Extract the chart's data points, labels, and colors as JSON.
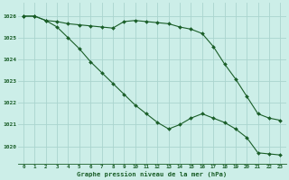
{
  "title": "Graphe pression niveau de la mer (hPa)",
  "bg_color": "#cceee8",
  "grid_color": "#aad4ce",
  "line_color": "#1a5e28",
  "marker_color": "#1a5e28",
  "x_labels": [
    "0",
    "1",
    "2",
    "3",
    "4",
    "5",
    "6",
    "7",
    "8",
    "9",
    "10",
    "11",
    "12",
    "13",
    "14",
    "15",
    "16",
    "17",
    "18",
    "19",
    "20",
    "21",
    "22",
    "23"
  ],
  "y_ticks": [
    1020,
    1021,
    1022,
    1023,
    1024,
    1025,
    1026
  ],
  "ylim": [
    1019.2,
    1026.6
  ],
  "xlim": [
    -0.5,
    23.5
  ],
  "series1": [
    1026.0,
    1026.0,
    1025.8,
    1025.75,
    1025.65,
    1025.6,
    1025.55,
    1025.5,
    1025.45,
    1025.75,
    1025.8,
    1025.75,
    1025.7,
    1025.65,
    1025.5,
    1025.4,
    1025.2,
    1024.6,
    1023.8,
    1023.1,
    1022.3,
    1021.5,
    1021.3,
    1021.2
  ],
  "series2": [
    1026.0,
    1026.0,
    1025.8,
    1025.5,
    1025.0,
    1024.5,
    1023.9,
    1023.4,
    1022.9,
    1022.4,
    1021.9,
    1021.5,
    1021.1,
    1020.8,
    1021.0,
    1021.3,
    1021.5,
    1021.3,
    1021.1,
    1020.8,
    1020.4,
    1019.7,
    1019.65,
    1019.6
  ]
}
